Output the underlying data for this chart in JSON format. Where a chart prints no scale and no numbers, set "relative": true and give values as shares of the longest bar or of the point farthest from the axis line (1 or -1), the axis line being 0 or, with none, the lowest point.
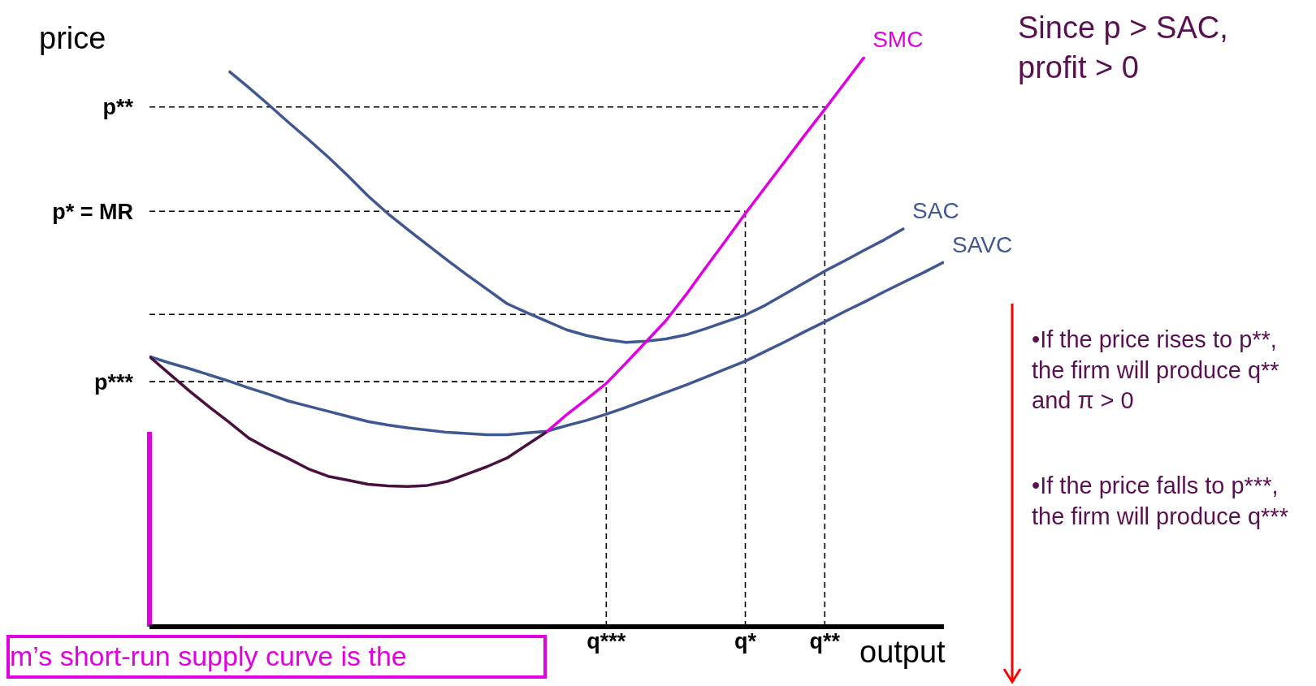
{
  "chart_data": {
    "type": "line",
    "relative": true,
    "xlabel": "output",
    "ylabel": "price",
    "grid": false,
    "legend": false,
    "marker": "none",
    "line_style": "solid",
    "categories": [
      null,
      null,
      null,
      null,
      null,
      null,
      null,
      null,
      null,
      null,
      null,
      null,
      null,
      null,
      null,
      null,
      null,
      null,
      null,
      null,
      null,
      null,
      null,
      "q***",
      null,
      null,
      null,
      null,
      null,
      null,
      "q*",
      null,
      null,
      null,
      "q**",
      null,
      null,
      null,
      null,
      null,
      null
    ],
    "series": [
      {
        "name": "SAC",
        "color": "#3f5792",
        "values": [
          null,
          null,
          null,
          null,
          0.975,
          0.946,
          0.916,
          0.885,
          0.855,
          0.824,
          0.791,
          0.756,
          0.725,
          0.697,
          0.67,
          0.643,
          0.617,
          0.592,
          0.567,
          0.551,
          0.536,
          0.521,
          0.511,
          0.504,
          0.499,
          0.501,
          0.505,
          0.512,
          0.523,
          0.535,
          0.547,
          0.564,
          0.584,
          0.604,
          0.624,
          0.642,
          0.661,
          0.679,
          0.699,
          null,
          null
        ]
      },
      {
        "name": "SAVC",
        "color": "#3f5792",
        "values": [
          0.474,
          0.463,
          0.453,
          0.442,
          0.431,
          0.419,
          0.408,
          0.396,
          0.387,
          0.378,
          0.369,
          0.36,
          0.354,
          0.349,
          0.345,
          0.341,
          0.339,
          0.337,
          0.337,
          0.34,
          0.343,
          0.353,
          0.362,
          0.373,
          0.385,
          0.398,
          0.411,
          0.424,
          0.438,
          0.452,
          0.466,
          0.483,
          0.5,
          0.518,
          0.535,
          0.553,
          0.57,
          0.588,
          0.605,
          0.622,
          0.64
        ]
      },
      {
        "color": "#4a0f3f",
        "values": [
          0.474,
          0.444,
          0.414,
          0.386,
          0.359,
          0.331,
          0.312,
          0.295,
          0.277,
          0.264,
          0.257,
          0.25,
          0.247,
          0.246,
          0.248,
          0.255,
          0.268,
          0.281,
          0.296,
          0.319,
          0.342,
          null,
          null,
          null,
          null,
          null,
          null,
          null,
          null,
          null,
          null,
          null,
          null,
          null,
          null,
          null,
          null,
          null,
          null,
          null,
          null
        ]
      },
      {
        "name": "SMC",
        "color": "#e000e0",
        "values": [
          null,
          null,
          null,
          null,
          null,
          null,
          null,
          null,
          null,
          null,
          null,
          null,
          null,
          null,
          null,
          null,
          null,
          null,
          null,
          null,
          0.342,
          0.372,
          0.399,
          0.427,
          0.463,
          0.5,
          0.537,
          0.582,
          0.63,
          0.677,
          0.725,
          0.771,
          0.817,
          0.863,
          0.908,
          0.954,
          1.0,
          null,
          null,
          null,
          null
        ]
      }
    ],
    "ref_lines": [
      {
        "axis": "y",
        "value": 0.43,
        "label": "p***",
        "color": "#000000",
        "line_style": "dashed"
      },
      {
        "axis": "x",
        "value": "q***",
        "color": "#000000",
        "line_style": "dashed"
      },
      {
        "axis": "y",
        "value": 0.729,
        "label": "p* = MR",
        "color": "#000000",
        "line_style": "dashed"
      },
      {
        "axis": "y",
        "value": 0.548,
        "color": "#000000",
        "line_style": "dashed"
      },
      {
        "axis": "x",
        "value": "q*",
        "color": "#000000",
        "line_style": "dashed"
      },
      {
        "axis": "y",
        "value": 0.912,
        "label": "p**",
        "color": "#000000",
        "line_style": "dashed"
      },
      {
        "axis": "x",
        "value": "q**",
        "color": "#000000",
        "line_style": "dashed"
      }
    ],
    "annotations": [
      "Since p > SAC, profit > 0",
      "•If the price rises to p**, the firm will produce q** and π > 0",
      "•If the price falls to p***, the firm will produce q***",
      "m’s short-run supply curve is the"
    ]
  }
}
